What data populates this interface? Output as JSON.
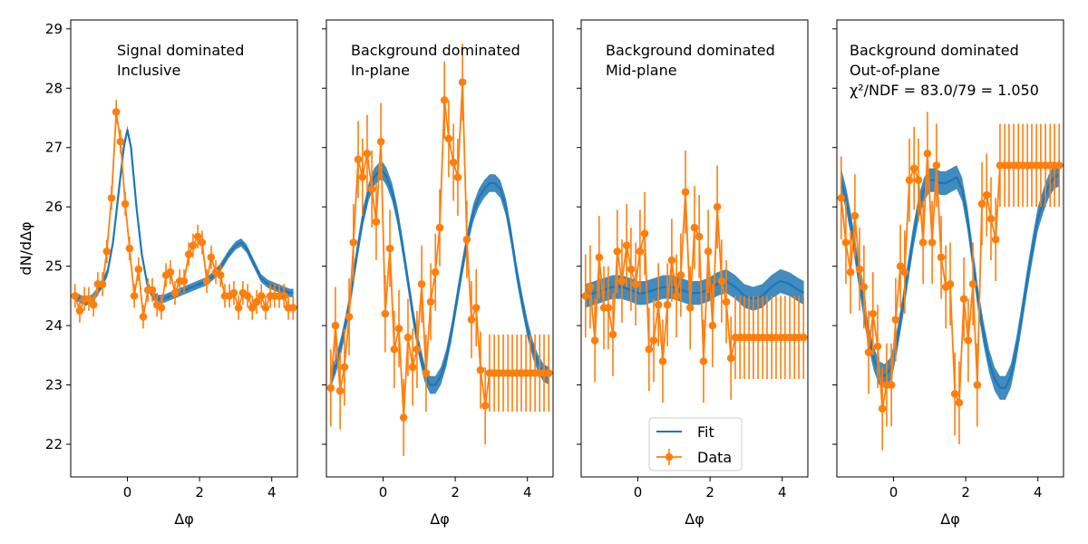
{
  "figure": {
    "ylabel": "dN/dΔφ",
    "xlabel": "Δφ"
  },
  "chart_data": [
    {
      "type": "line",
      "annotation": [
        "Signal dominated",
        "Inclusive"
      ],
      "xlim": [
        -1.57,
        4.71
      ],
      "ylim": [
        21.45,
        29.15
      ],
      "xticks": [
        "0",
        "2",
        "4"
      ],
      "yticks": [
        "22",
        "23",
        "24",
        "25",
        "26",
        "27",
        "28",
        "29"
      ],
      "fit": {
        "x": [
          -1.45,
          -1.3,
          -1.15,
          -1.0,
          -0.85,
          -0.7,
          -0.55,
          -0.4,
          -0.25,
          -0.1,
          0.0,
          0.1,
          0.25,
          0.4,
          0.55,
          0.7,
          0.85,
          1.0,
          1.2,
          1.4,
          1.6,
          1.8,
          2.0,
          2.2,
          2.4,
          2.6,
          2.8,
          3.0,
          3.15,
          3.3,
          3.5,
          3.7,
          3.9,
          4.1,
          4.3,
          4.5,
          4.6
        ],
        "y": [
          24.5,
          24.45,
          24.4,
          24.45,
          24.55,
          24.7,
          24.9,
          25.4,
          26.2,
          27.0,
          27.3,
          27.0,
          26.0,
          25.2,
          24.7,
          24.5,
          24.45,
          24.45,
          24.5,
          24.55,
          24.6,
          24.65,
          24.7,
          24.75,
          24.85,
          25.0,
          25.2,
          25.35,
          25.4,
          25.3,
          25.05,
          24.8,
          24.7,
          24.65,
          24.6,
          24.55,
          24.55
        ],
        "band": 0.07
      },
      "data": {
        "x": [
          -1.45,
          -1.32,
          -1.19,
          -1.07,
          -0.94,
          -0.82,
          -0.69,
          -0.57,
          -0.44,
          -0.31,
          -0.19,
          -0.06,
          0.06,
          0.19,
          0.31,
          0.44,
          0.57,
          0.69,
          0.82,
          0.94,
          1.07,
          1.19,
          1.32,
          1.45,
          1.57,
          1.7,
          1.82,
          1.95,
          2.07,
          2.2,
          2.32,
          2.45,
          2.58,
          2.7,
          2.83,
          2.95,
          3.08,
          3.2,
          3.33,
          3.46,
          3.58,
          3.71,
          3.83,
          3.96,
          4.08,
          4.21,
          4.34,
          4.46,
          4.59
        ],
        "y": [
          24.5,
          24.25,
          24.45,
          24.45,
          24.35,
          24.7,
          24.7,
          25.25,
          26.15,
          27.6,
          27.1,
          26.05,
          25.3,
          24.5,
          24.95,
          24.15,
          24.6,
          24.6,
          24.35,
          24.3,
          24.85,
          24.9,
          24.55,
          24.75,
          24.75,
          25.2,
          25.35,
          25.5,
          25.4,
          24.75,
          25.15,
          24.9,
          24.85,
          24.5,
          24.5,
          24.55,
          24.3,
          24.55,
          24.5,
          24.3,
          24.4,
          24.5,
          24.3,
          24.5,
          24.5,
          24.5,
          24.5,
          24.3,
          24.3
        ],
        "err": [
          0.2,
          0.2,
          0.2,
          0.2,
          0.2,
          0.2,
          0.2,
          0.2,
          0.2,
          0.2,
          0.2,
          0.2,
          0.2,
          0.2,
          0.2,
          0.2,
          0.2,
          0.2,
          0.2,
          0.2,
          0.2,
          0.2,
          0.2,
          0.2,
          0.2,
          0.2,
          0.2,
          0.2,
          0.2,
          0.2,
          0.2,
          0.2,
          0.2,
          0.2,
          0.2,
          0.2,
          0.2,
          0.2,
          0.2,
          0.2,
          0.2,
          0.2,
          0.2,
          0.2,
          0.2,
          0.2,
          0.2,
          0.2,
          0.2
        ]
      }
    },
    {
      "type": "line",
      "annotation": [
        "Background dominated",
        "In-plane"
      ],
      "xlim": [
        -1.57,
        4.71
      ],
      "ylim": [
        21.45,
        29.15
      ],
      "xticks": [
        "0",
        "2",
        "4"
      ],
      "yticks": [
        "22",
        "23",
        "24",
        "25",
        "26",
        "27",
        "28",
        "29"
      ],
      "fit": {
        "x": [
          -1.45,
          -1.3,
          -1.15,
          -1.0,
          -0.85,
          -0.7,
          -0.55,
          -0.4,
          -0.25,
          -0.1,
          0.0,
          0.1,
          0.25,
          0.4,
          0.55,
          0.7,
          0.85,
          1.0,
          1.15,
          1.3,
          1.45,
          1.6,
          1.75,
          1.9,
          2.05,
          2.2,
          2.35,
          2.5,
          2.65,
          2.8,
          2.95,
          3.1,
          3.25,
          3.4,
          3.55,
          3.7,
          3.85,
          4.0,
          4.15,
          4.3,
          4.45,
          4.6
        ],
        "y": [
          23.1,
          23.35,
          23.7,
          24.15,
          24.7,
          25.3,
          25.85,
          26.25,
          26.5,
          26.6,
          26.6,
          26.5,
          26.25,
          25.85,
          25.3,
          24.7,
          24.1,
          23.6,
          23.2,
          23.0,
          23.0,
          23.15,
          23.45,
          23.9,
          24.45,
          25.0,
          25.5,
          25.9,
          26.15,
          26.3,
          26.4,
          26.4,
          26.3,
          26.0,
          25.5,
          24.9,
          24.4,
          23.95,
          23.6,
          23.35,
          23.2,
          23.15
        ],
        "band": 0.15
      },
      "data": {
        "x": [
          -1.45,
          -1.32,
          -1.19,
          -1.07,
          -0.94,
          -0.82,
          -0.69,
          -0.57,
          -0.44,
          -0.31,
          -0.19,
          -0.06,
          0.06,
          0.19,
          0.31,
          0.44,
          0.57,
          0.69,
          0.82,
          0.94,
          1.07,
          1.19,
          1.32,
          1.45,
          1.57,
          1.7,
          1.82,
          1.95,
          2.07,
          2.2,
          2.32,
          2.45,
          2.58,
          2.7,
          2.83,
          2.95,
          3.08,
          3.2,
          3.33,
          3.46,
          3.58,
          3.71,
          3.83,
          3.96,
          4.08,
          4.21,
          4.34,
          4.46,
          4.59
        ],
        "y": [
          22.95,
          24.0,
          22.9,
          23.3,
          24.15,
          25.4,
          26.8,
          26.5,
          26.9,
          26.3,
          25.75,
          27.1,
          24.2,
          25.3,
          23.6,
          23.95,
          22.45,
          23.8,
          23.3,
          23.6,
          24.7,
          23.2,
          24.4,
          24.9,
          25.65,
          27.8,
          27.15,
          26.75,
          26.5,
          28.1,
          25.45,
          24.1,
          24.3,
          23.25,
          22.65,
          23.2,
          23.2,
          23.2,
          23.2,
          23.2,
          23.2,
          23.2,
          23.2,
          23.2,
          23.2,
          23.2,
          23.2,
          23.2,
          23.2
        ],
        "err": [
          0.65,
          0.65,
          0.65,
          0.65,
          0.65,
          0.65,
          0.65,
          0.65,
          0.65,
          0.65,
          0.65,
          0.65,
          0.65,
          0.65,
          0.65,
          0.65,
          0.65,
          0.65,
          0.65,
          0.65,
          0.65,
          0.65,
          0.65,
          0.65,
          0.65,
          0.65,
          0.65,
          0.65,
          0.65,
          0.65,
          0.65,
          0.65,
          0.65,
          0.65,
          0.65,
          0.65,
          0.65,
          0.65,
          0.65,
          0.65,
          0.65,
          0.65,
          0.65,
          0.65,
          0.65,
          0.65,
          0.65,
          0.65,
          0.65
        ]
      }
    },
    {
      "type": "line",
      "annotation": [
        "Background dominated",
        "Mid-plane"
      ],
      "xlim": [
        -1.57,
        4.71
      ],
      "ylim": [
        21.45,
        29.15
      ],
      "xticks": [
        "0",
        "2",
        "4"
      ],
      "yticks": [
        "22",
        "23",
        "24",
        "25",
        "26",
        "27",
        "28",
        "29"
      ],
      "legend": {
        "position": "bottom-center",
        "entries": [
          "Fit",
          "Data"
        ]
      },
      "fit": {
        "x": [
          -1.45,
          -1.2,
          -0.95,
          -0.7,
          -0.45,
          -0.2,
          0.0,
          0.2,
          0.45,
          0.7,
          0.95,
          1.2,
          1.45,
          1.7,
          1.95,
          2.2,
          2.45,
          2.7,
          2.95,
          3.2,
          3.45,
          3.7,
          3.95,
          4.2,
          4.45,
          4.6
        ],
        "y": [
          24.5,
          24.55,
          24.6,
          24.65,
          24.65,
          24.6,
          24.55,
          24.55,
          24.6,
          24.65,
          24.65,
          24.6,
          24.55,
          24.55,
          24.6,
          24.7,
          24.75,
          24.65,
          24.5,
          24.45,
          24.5,
          24.65,
          24.75,
          24.7,
          24.6,
          24.55
        ],
        "band": 0.2
      },
      "data": {
        "x": [
          -1.45,
          -1.32,
          -1.19,
          -1.07,
          -0.94,
          -0.82,
          -0.69,
          -0.57,
          -0.44,
          -0.31,
          -0.19,
          -0.06,
          0.06,
          0.19,
          0.31,
          0.44,
          0.57,
          0.69,
          0.82,
          0.94,
          1.07,
          1.19,
          1.32,
          1.45,
          1.57,
          1.7,
          1.82,
          1.95,
          2.07,
          2.2,
          2.32,
          2.45,
          2.58,
          2.7,
          2.83,
          2.95,
          3.08,
          3.2,
          3.33,
          3.46,
          3.58,
          3.71,
          3.83,
          3.96,
          4.08,
          4.21,
          4.34,
          4.46,
          4.59
        ],
        "y": [
          24.5,
          24.65,
          23.75,
          25.15,
          24.3,
          24.3,
          23.85,
          25.25,
          24.75,
          25.35,
          24.95,
          24.7,
          25.25,
          25.55,
          23.6,
          23.75,
          24.35,
          23.4,
          24.35,
          25.1,
          24.5,
          24.85,
          26.25,
          24.3,
          25.65,
          25.5,
          23.4,
          25.25,
          24.0,
          26.0,
          24.75,
          24.4,
          23.45,
          23.8,
          23.8,
          23.8,
          23.8,
          23.8,
          23.8,
          23.8,
          23.8,
          23.8,
          23.8,
          23.8,
          23.8,
          23.8,
          23.8,
          23.8,
          23.8
        ],
        "err": [
          0.7,
          0.7,
          0.7,
          0.7,
          0.7,
          0.7,
          0.7,
          0.7,
          0.7,
          0.7,
          0.7,
          0.7,
          0.7,
          0.7,
          0.7,
          0.7,
          0.7,
          0.7,
          0.7,
          0.7,
          0.7,
          0.7,
          0.7,
          0.7,
          0.7,
          0.7,
          0.7,
          0.7,
          0.7,
          0.7,
          0.7,
          0.7,
          0.7,
          0.7,
          0.7,
          0.7,
          0.7,
          0.7,
          0.7,
          0.7,
          0.7,
          0.7,
          0.7,
          0.7,
          0.7,
          0.7,
          0.7,
          0.7,
          0.7
        ]
      }
    },
    {
      "type": "line",
      "annotation": [
        "Background dominated",
        "Out-of-plane",
        "χ²/NDF = 83.0/79 = 1.050"
      ],
      "xlim": [
        -1.57,
        4.71
      ],
      "ylim": [
        21.45,
        29.15
      ],
      "xticks": [
        "0",
        "2",
        "4"
      ],
      "yticks": [
        "22",
        "23",
        "24",
        "25",
        "26",
        "27",
        "28",
        "29"
      ],
      "fit": {
        "x": [
          -1.45,
          -1.3,
          -1.15,
          -1.0,
          -0.85,
          -0.7,
          -0.55,
          -0.4,
          -0.25,
          -0.1,
          0.0,
          0.1,
          0.25,
          0.4,
          0.55,
          0.7,
          0.85,
          1.0,
          1.15,
          1.3,
          1.45,
          1.6,
          1.75,
          1.9,
          2.05,
          2.2,
          2.35,
          2.5,
          2.65,
          2.8,
          2.95,
          3.1,
          3.25,
          3.4,
          3.55,
          3.7,
          3.85,
          4.0,
          4.15,
          4.3,
          4.45,
          4.6
        ],
        "y": [
          26.45,
          26.1,
          25.6,
          25.0,
          24.4,
          23.85,
          23.45,
          23.2,
          23.15,
          23.25,
          23.45,
          23.75,
          24.3,
          24.9,
          25.5,
          26.0,
          26.3,
          26.45,
          26.45,
          26.4,
          26.4,
          26.45,
          26.5,
          26.3,
          25.8,
          25.1,
          24.4,
          23.85,
          23.4,
          23.1,
          22.95,
          22.95,
          23.15,
          23.6,
          24.15,
          24.75,
          25.3,
          25.8,
          26.1,
          26.35,
          26.5,
          26.55
        ],
        "band": 0.2
      },
      "data": {
        "x": [
          -1.45,
          -1.32,
          -1.19,
          -1.07,
          -0.94,
          -0.82,
          -0.69,
          -0.57,
          -0.44,
          -0.31,
          -0.19,
          -0.06,
          0.06,
          0.19,
          0.31,
          0.44,
          0.57,
          0.69,
          0.82,
          0.94,
          1.07,
          1.19,
          1.32,
          1.45,
          1.57,
          1.7,
          1.82,
          1.95,
          2.07,
          2.2,
          2.32,
          2.45,
          2.58,
          2.7,
          2.83,
          2.95,
          3.08,
          3.2,
          3.33,
          3.46,
          3.58,
          3.71,
          3.83,
          3.96,
          4.08,
          4.21,
          4.34,
          4.46,
          4.59
        ],
        "y": [
          26.15,
          25.4,
          24.9,
          25.85,
          24.95,
          24.65,
          23.55,
          24.2,
          23.65,
          22.6,
          23.0,
          23.0,
          24.1,
          25.0,
          24.9,
          26.45,
          26.65,
          26.45,
          25.4,
          26.9,
          25.4,
          26.7,
          25.15,
          24.65,
          24.7,
          22.85,
          22.7,
          24.45,
          23.75,
          24.7,
          23.0,
          26.05,
          26.2,
          25.8,
          25.45,
          26.7,
          26.7,
          26.7,
          26.7,
          26.7,
          26.7,
          26.7,
          26.7,
          26.7,
          26.7,
          26.7,
          26.7,
          26.7,
          26.7
        ],
        "err": [
          0.7,
          0.7,
          0.7,
          0.7,
          0.7,
          0.7,
          0.7,
          0.7,
          0.7,
          0.7,
          0.7,
          0.7,
          0.7,
          0.7,
          0.7,
          0.7,
          0.7,
          0.7,
          0.7,
          0.7,
          0.7,
          0.7,
          0.7,
          0.7,
          0.7,
          0.7,
          0.7,
          0.7,
          0.7,
          0.7,
          0.7,
          0.7,
          0.7,
          0.7,
          0.7,
          0.7,
          0.7,
          0.7,
          0.7,
          0.7,
          0.7,
          0.7,
          0.7,
          0.7,
          0.7,
          0.7,
          0.7,
          0.7,
          0.7
        ]
      }
    }
  ],
  "colors": {
    "fit": "#1f77b4",
    "data": "#ff7f0e"
  }
}
